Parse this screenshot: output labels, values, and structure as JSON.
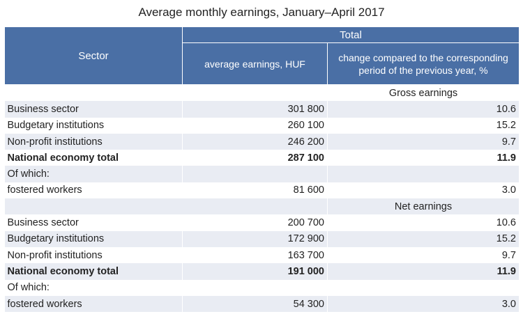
{
  "title": "Average monthly earnings, January–April 2017",
  "header": {
    "sector": "Sector",
    "total": "Total",
    "avg_earnings": "average earnings, HUF",
    "change": "change compared to the corresponding period of the previous year, %"
  },
  "sections": [
    {
      "label": "Gross earnings",
      "rows": [
        {
          "sector": "Business sector",
          "avg": "301 800",
          "change": "10.6",
          "bold": false
        },
        {
          "sector": "Budgetary institutions",
          "avg": "260 100",
          "change": "15.2",
          "bold": false
        },
        {
          "sector": "Non-profit institutions",
          "avg": "246 200",
          "change": "9.7",
          "bold": false
        },
        {
          "sector": "National economy total",
          "avg": "287 100",
          "change": "11.9",
          "bold": true
        },
        {
          "sector": "Of which:",
          "avg": "",
          "change": "",
          "bold": false
        },
        {
          "sector": "fostered workers",
          "avg": "81 600",
          "change": "3.0",
          "bold": false
        }
      ]
    },
    {
      "label": "Net earnings",
      "rows": [
        {
          "sector": "Business sector",
          "avg": "200 700",
          "change": "10.6",
          "bold": false
        },
        {
          "sector": "Budgetary institutions",
          "avg": "172 900",
          "change": "15.2",
          "bold": false
        },
        {
          "sector": "Non-profit institutions",
          "avg": "163 700",
          "change": "9.7",
          "bold": false
        },
        {
          "sector": "National economy total",
          "avg": "191 000",
          "change": "11.9",
          "bold": true
        },
        {
          "sector": "Of which:",
          "avg": "",
          "change": "",
          "bold": false
        },
        {
          "sector": "fostered workers",
          "avg": "54 300",
          "change": "3.0",
          "bold": false
        }
      ]
    }
  ]
}
